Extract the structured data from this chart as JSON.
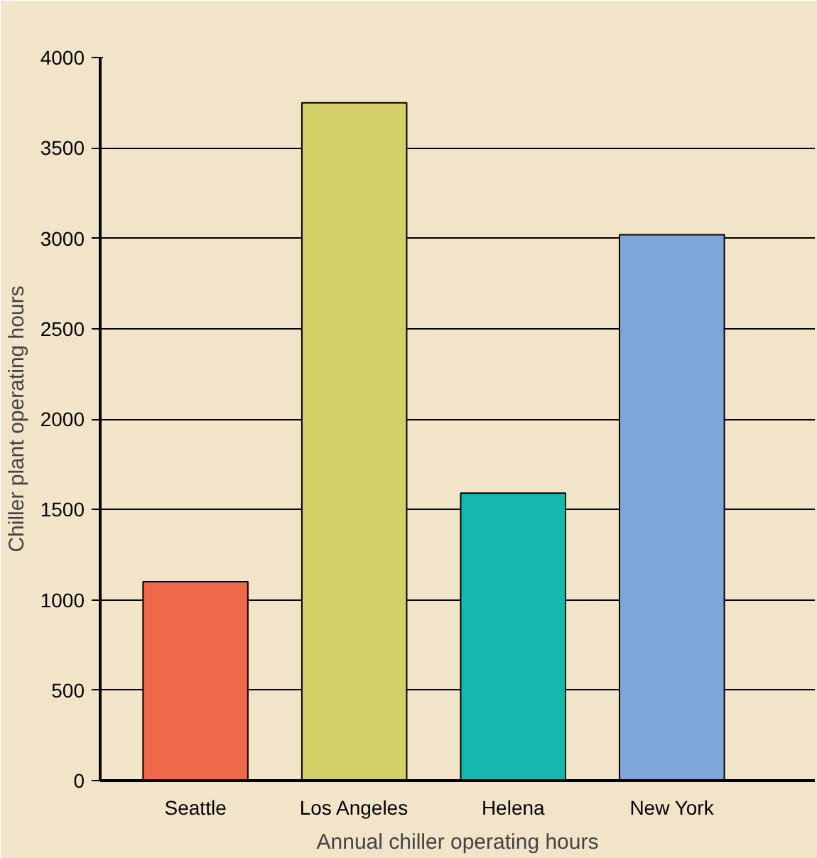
{
  "chart_data": {
    "type": "bar",
    "xlabel": "Annual chiller operating hours",
    "ylabel": "Chiller plant operating hours",
    "categories": [
      "Seattle",
      "Los Angeles",
      "Helena",
      "New York"
    ],
    "values": [
      1100,
      3750,
      1590,
      3020
    ],
    "colors": [
      "#f0694a",
      "#d3d06a",
      "#14b8ac",
      "#7ea7d8"
    ],
    "ylim": [
      0,
      4000
    ],
    "yticks": [
      0,
      500,
      1000,
      1500,
      2000,
      2500,
      3000,
      3500,
      4000
    ],
    "grid": "y"
  }
}
